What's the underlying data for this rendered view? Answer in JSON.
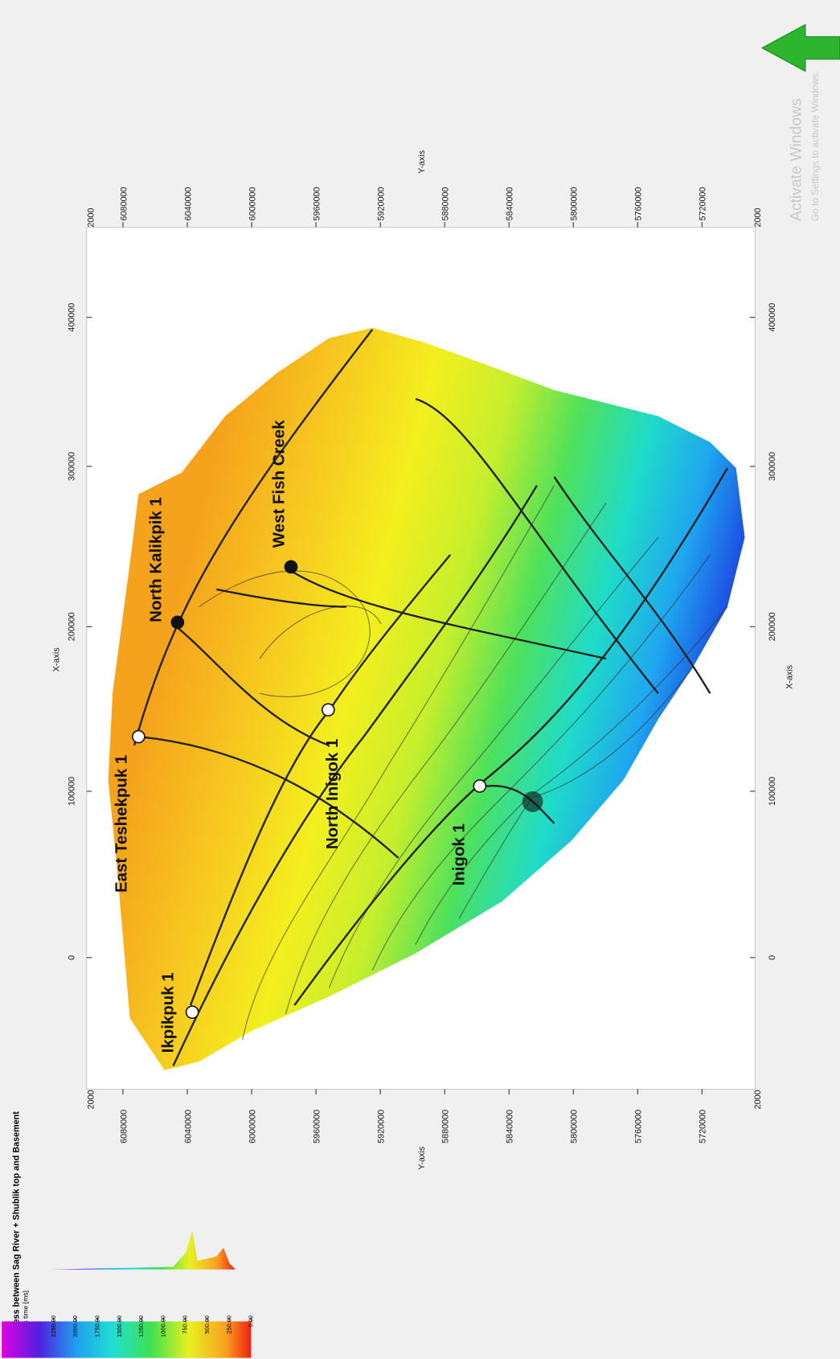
{
  "header": {
    "title": "Thickness between Sag River + Shublik top and Basement",
    "subtitle": "Thickness time [ms]"
  },
  "colorbar": {
    "labels": [
      "2250.00",
      "2000.00",
      "1750.00",
      "1500.00",
      "1250.00",
      "1000.00",
      "750.00",
      "500.00",
      "250.00",
      "0.00"
    ]
  },
  "axes": {
    "x_label": "X-axis",
    "y_label": "Y-axis",
    "corner_label": "2000",
    "x_ticks": [
      "0",
      "100000",
      "200000",
      "300000",
      "400000"
    ],
    "y_ticks": [
      "6080000",
      "6040000",
      "6000000",
      "5960000",
      "5920000",
      "5880000",
      "5840000",
      "5800000",
      "5760000",
      "5720000"
    ]
  },
  "wells": [
    {
      "label": "Ikpikpuk 1"
    },
    {
      "label": "East Teshekpuk 1"
    },
    {
      "label": "North Inigok 1"
    },
    {
      "label": "Inigok 1"
    },
    {
      "label": "North Kalikpik 1"
    },
    {
      "label": "West Fish Creek"
    }
  ],
  "watermark": {
    "title": "Activate Windows",
    "text": "Go to Settings to activate Windows."
  }
}
